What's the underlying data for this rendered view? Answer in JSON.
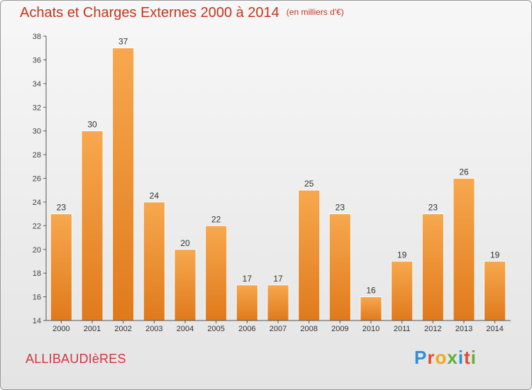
{
  "chart_data": {
    "type": "bar",
    "title": "Achats et Charges Externes 2000 à 2014",
    "subtitle": "(en milliers d'€)",
    "categories": [
      "2000",
      "2001",
      "2002",
      "2003",
      "2004",
      "2005",
      "2006",
      "2007",
      "2008",
      "2009",
      "2010",
      "2011",
      "2012",
      "2013",
      "2014"
    ],
    "values": [
      23,
      30,
      37,
      24,
      20,
      22,
      17,
      17,
      25,
      23,
      16,
      19,
      23,
      26,
      19
    ],
    "ylim": [
      14,
      38
    ],
    "yticks": [
      14,
      16,
      18,
      20,
      22,
      24,
      26,
      28,
      30,
      32,
      34,
      36,
      38
    ],
    "grid": false,
    "bar_color": "#f0953a",
    "xlabel": "",
    "ylabel": ""
  },
  "footer": {
    "commune": "ALLIBAUDIèRES",
    "logo_letters": [
      {
        "ch": "P",
        "color": "#2f8fd6"
      },
      {
        "ch": "r",
        "color": "#e64a2e"
      },
      {
        "ch": "o",
        "color": "#f2a81d"
      },
      {
        "ch": "x",
        "color": "#5fae3a"
      },
      {
        "ch": "i",
        "color": "#2f8fd6"
      },
      {
        "ch": "t",
        "color": "#e64a2e"
      },
      {
        "ch": "i",
        "color": "#5fae3a"
      }
    ]
  }
}
